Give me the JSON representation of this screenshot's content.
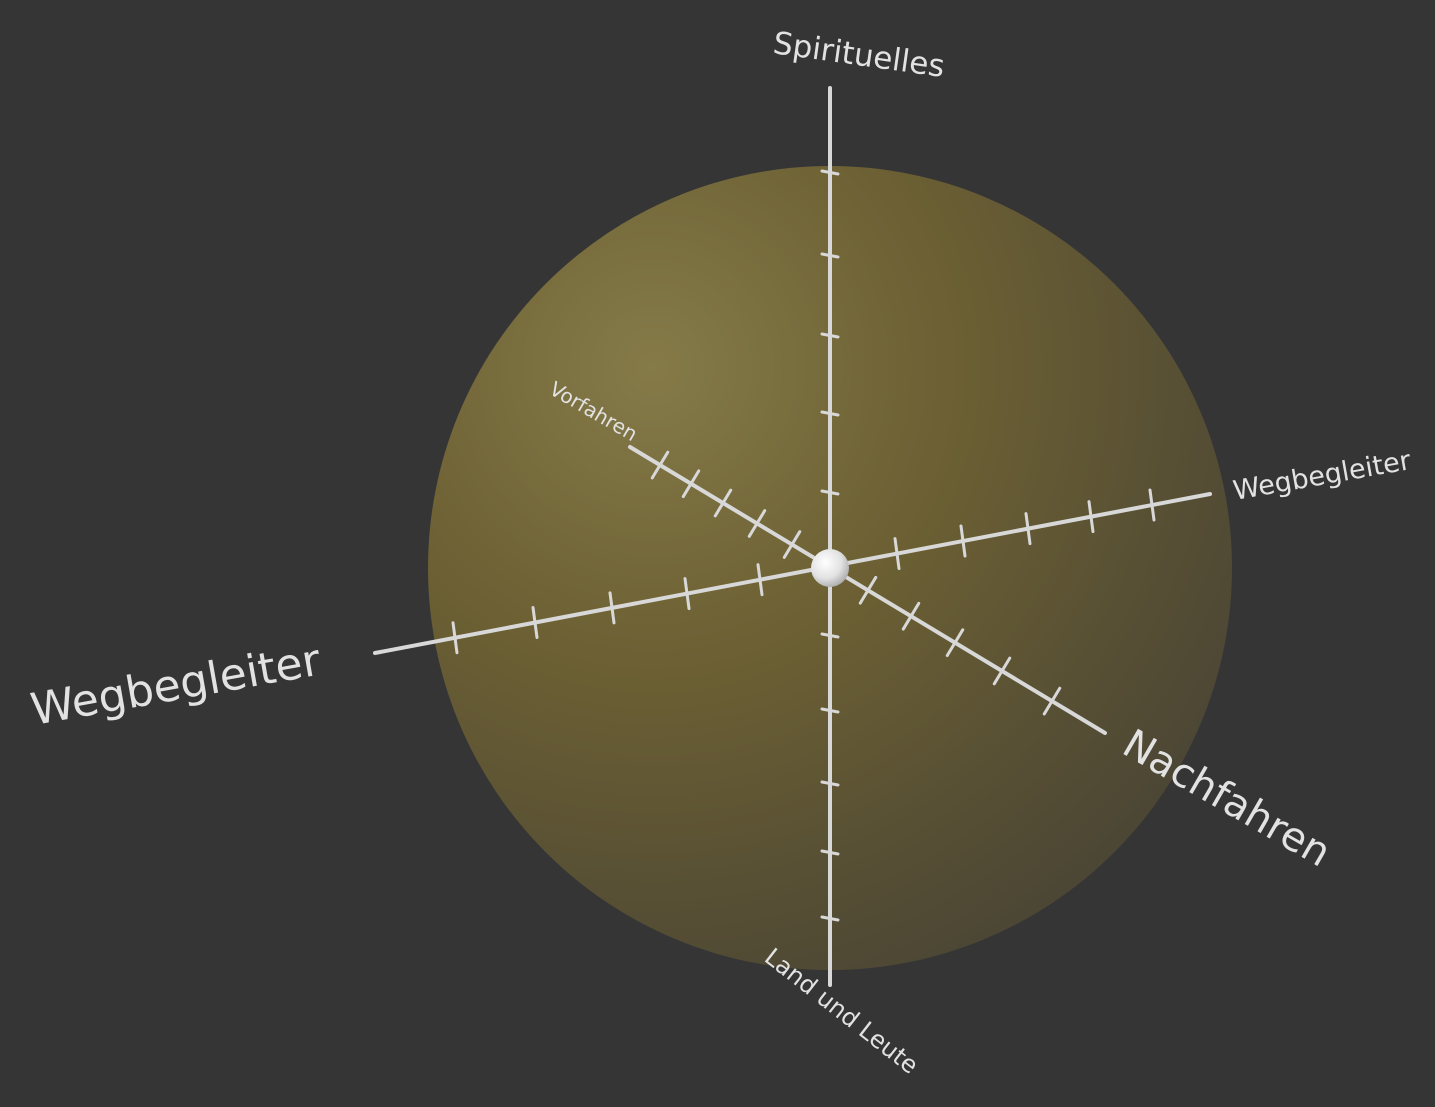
{
  "diagram": {
    "labels": {
      "top": "Spirituelles",
      "bottom": "Land und Leute",
      "left": "Wegbegleiter",
      "right": "Wegbegleiter",
      "back": "Vorfahren",
      "front": "Nachfahren"
    },
    "colors": {
      "background": "#353535",
      "sphere_highlight": "#857a48",
      "sphere_mid": "#6b5f33",
      "sphere_shadow": "#4a4535",
      "axis": "#d8d8d8",
      "center_node": "#e6e6e6",
      "label": "#e2e2e2"
    }
  }
}
